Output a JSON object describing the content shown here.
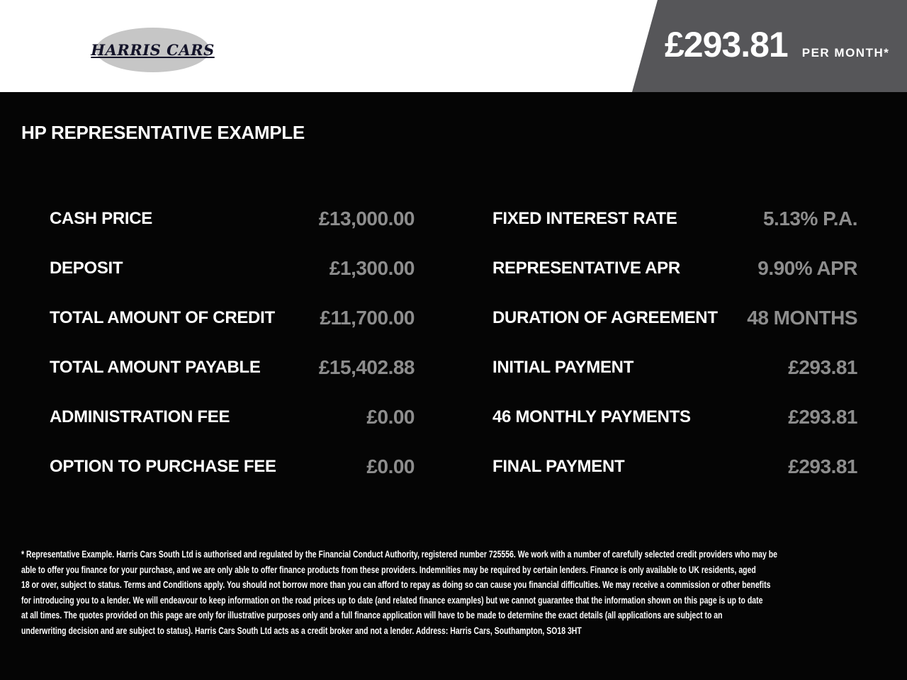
{
  "header": {
    "logo_text": "HARRIS CARS",
    "price_amount": "£293.81",
    "price_suffix": "PER MONTH*"
  },
  "title": "HP REPRESENTATIVE EXAMPLE",
  "finance": {
    "left": [
      {
        "label": "CASH PRICE",
        "value": "£13,000.00"
      },
      {
        "label": "DEPOSIT",
        "value": "£1,300.00"
      },
      {
        "label": "TOTAL AMOUNT OF CREDIT",
        "value": "£11,700.00"
      },
      {
        "label": "TOTAL AMOUNT PAYABLE",
        "value": "£15,402.88"
      },
      {
        "label": "ADMINISTRATION FEE",
        "value": "£0.00"
      },
      {
        "label": "OPTION TO PURCHASE FEE",
        "value": "£0.00"
      }
    ],
    "right": [
      {
        "label": "FIXED INTEREST RATE",
        "value": "5.13% P.A."
      },
      {
        "label": "REPRESENTATIVE APR",
        "value": "9.90% APR"
      },
      {
        "label": "DURATION OF AGREEMENT",
        "value": "48 MONTHS"
      },
      {
        "label": "INITIAL PAYMENT",
        "value": "£293.81"
      },
      {
        "label": "46 MONTHLY PAYMENTS",
        "value": "£293.81"
      },
      {
        "label": "FINAL PAYMENT",
        "value": "£293.81"
      }
    ]
  },
  "disclaimer_lines": [
    "* Representative Example. Harris Cars South Ltd is authorised and regulated by the Financial Conduct Authority, registered number 725556. We work with a number of carefully selected credit providers who may be",
    "able to offer you finance for your purchase, and we are only able to offer finance products from these providers. Indemnities may be required by certain lenders. Finance is only available to UK residents, aged",
    "18 or over, subject to status. Terms and Conditions apply. You should not borrow more than you can afford to repay as doing so can cause you financial difficulties. We may receive a commission or other benefits",
    "for introducing you to a lender. We will endeavour to keep information on the road prices up to date (and related finance examples) but we cannot guarantee that the information shown on this page is up to date",
    "at all times. The quotes provided on this page are only for illustrative purposes only and a full finance application will have to be made to determine the exact details (all applications are subject to an",
    "underwriting decision and are subject to status). Harris Cars South Ltd acts as a credit broker and not a lender. Address: Harris Cars, Southampton, SO18 3HT"
  ],
  "colors": {
    "header_bg": "#ffffff",
    "banner_bg": "#565659",
    "page_bg": "#050505",
    "label_text": "#ffffff",
    "value_text": "#8d8d8d",
    "logo_ellipse": "#c6c6c6",
    "logo_text": "#14142a"
  }
}
